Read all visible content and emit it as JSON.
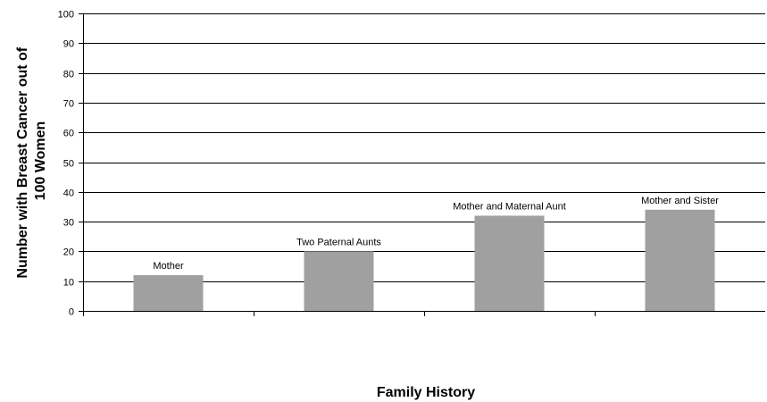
{
  "chart_data": {
    "type": "bar",
    "title": "",
    "xlabel": "Family History",
    "ylabel_lines": [
      "Number with Breast Cancer out of",
      "100 Women"
    ],
    "ylim": [
      0,
      100
    ],
    "yticks": [
      0,
      10,
      20,
      30,
      40,
      50,
      60,
      70,
      80,
      90,
      100
    ],
    "categories": [
      "Mother",
      "Two Paternal Aunts",
      "Mother and Maternal Aunt",
      "Mother and Sister"
    ],
    "values": [
      12,
      20,
      32,
      34
    ],
    "grid": true,
    "legend": "none",
    "bar_color": "#a0a0a0"
  }
}
